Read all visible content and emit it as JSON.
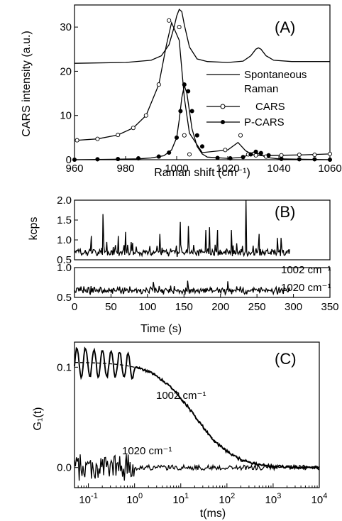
{
  "chart_data": [
    {
      "type": "line",
      "panel_label": "(A)",
      "xlabel": "Raman shift (cm⁻¹)",
      "ylabel": "CARS intensity (a.u.)",
      "xlim": [
        960,
        1060
      ],
      "ylim": [
        0,
        35
      ],
      "xticks": [
        960,
        980,
        1000,
        1020,
        1040,
        1060
      ],
      "yticks": [
        0,
        10,
        20,
        30
      ],
      "legend_position": "right",
      "legend": [
        {
          "text": "Spontaneous",
          "marker": "none"
        },
        {
          "text": "Raman",
          "marker": "none"
        },
        {
          "text": "CARS",
          "marker": "open-circle"
        },
        {
          "text": "P-CARS",
          "marker": "filled-circle"
        }
      ],
      "series": [
        {
          "name": "Spontaneous Raman",
          "x": [
            960,
            980,
            990,
            994,
            997,
            999,
            1000,
            1001,
            1002,
            1003,
            1005,
            1008,
            1012,
            1020,
            1026,
            1029,
            1031,
            1032,
            1033,
            1035,
            1038,
            1045,
            1060
          ],
          "y": [
            21.8,
            22,
            22.5,
            23.5,
            26,
            30,
            32.5,
            34,
            33.5,
            30.5,
            25.5,
            22.8,
            22.2,
            22,
            22.3,
            23.5,
            25,
            25.3,
            25,
            23.5,
            22.5,
            22.2,
            22.2
          ]
        },
        {
          "name": "CARS",
          "x": [
            961,
            969,
            977,
            983,
            988,
            993,
            996,
            998,
            1001,
            1003,
            1005,
            1010,
            1020,
            1024,
            1027,
            1030,
            1033,
            1040,
            1050,
            1060
          ],
          "y": [
            4.4,
            4.7,
            5.6,
            7.2,
            10,
            17,
            26,
            31,
            27,
            14,
            6,
            1.6,
            2.2,
            3.9,
            2,
            1.1,
            0.9,
            1,
            1.1,
            1.3
          ],
          "markers_x": [
            961,
            969,
            977,
            983,
            988,
            993,
            997,
            1001,
            1003,
            1005,
            1019,
            1025,
            1028,
            1031,
            1035,
            1041,
            1048,
            1054,
            1060
          ],
          "markers_y": [
            4.4,
            4.7,
            5.6,
            7.2,
            10,
            17,
            31.5,
            30,
            5.5,
            1.2,
            2.2,
            5.5,
            1.2,
            1,
            0.7,
            1,
            1.1,
            1.1,
            1.3
          ]
        },
        {
          "name": "P-CARS",
          "x": [
            960,
            975,
            985,
            990,
            995,
            998,
            1000,
            1001,
            1002,
            1003,
            1004,
            1005,
            1006,
            1008,
            1010,
            1012,
            1020,
            1025,
            1028,
            1030,
            1031,
            1033,
            1035,
            1040,
            1050,
            1060
          ],
          "y": [
            0,
            0.1,
            0.2,
            0.4,
            0.9,
            2.2,
            5,
            9,
            14,
            16.8,
            15,
            11,
            7,
            3,
            1.3,
            0.6,
            0.3,
            0.5,
            1,
            1.7,
            1.6,
            1.1,
            0.5,
            0.2,
            0.1,
            0
          ],
          "markers_x": [
            960,
            969,
            977,
            985,
            993,
            997,
            1000,
            1001.5,
            1003,
            1004.5,
            1006,
            1008,
            1010,
            1016,
            1021,
            1026,
            1029,
            1031,
            1033,
            1036,
            1041,
            1048,
            1054,
            1060
          ],
          "markers_y": [
            0,
            0.1,
            0.15,
            0.3,
            0.7,
            1.6,
            5,
            11,
            17,
            15.5,
            11,
            5.5,
            3,
            0.4,
            0.3,
            0.6,
            1.2,
            1.8,
            1.5,
            1,
            0.2,
            0.1,
            0.1,
            0
          ]
        }
      ]
    },
    {
      "type": "line",
      "panel_label": "(B)",
      "xlabel": "Time (s)",
      "ylabel": "kcps",
      "xlim": [
        0,
        350
      ],
      "xticks": [
        0,
        50,
        100,
        150,
        200,
        250,
        300,
        350
      ],
      "subplots": [
        {
          "name": "1002 cm⁻¹",
          "ylim": [
            0.5,
            2.0
          ],
          "yticks": [
            0.5,
            1.0,
            1.5,
            2.0
          ],
          "annotation": "1002 cm⁻¹",
          "series": {
            "t_start": 0,
            "t_end": 295,
            "baseline": 0.68,
            "noise": 0.07,
            "spikes_t": [
              39,
              235,
              145,
              70,
              156,
              185,
              180,
              196,
              117,
              215,
              60,
              253,
              283,
              23,
              278
            ],
            "spikes_y": [
              1.65,
              2.0,
              1.45,
              1.2,
              1.35,
              1.32,
              1.25,
              1.25,
              1.15,
              1.25,
              1.1,
              1.15,
              1.05,
              1.1,
              1.05
            ]
          }
        },
        {
          "name": "1020 cm⁻¹",
          "ylim": [
            0.5,
            1.0
          ],
          "yticks": [
            0.5,
            1.0
          ],
          "annotation": "1020 cm⁻¹",
          "series": {
            "t_start": 0,
            "t_end": 295,
            "baseline": 0.62,
            "noise": 0.05,
            "spikes_t": [
              155,
              210,
              108
            ],
            "spikes_y": [
              0.78,
              0.77,
              0.76
            ]
          }
        }
      ]
    },
    {
      "type": "line",
      "panel_label": "(C)",
      "xlabel": "t(ms)",
      "ylabel": "G₁(t)",
      "xscale": "log",
      "xlim": [
        0.05,
        10000
      ],
      "ylim": [
        -0.02,
        0.125
      ],
      "xticks": [
        0.1,
        1,
        10,
        100,
        1000,
        10000
      ],
      "xticklabels": [
        {
          "base": "10",
          "exp": "-1"
        },
        {
          "base": "10",
          "exp": "0"
        },
        {
          "base": "10",
          "exp": "1"
        },
        {
          "base": "10",
          "exp": "2"
        },
        {
          "base": "10",
          "exp": "3"
        },
        {
          "base": "10",
          "exp": "4"
        }
      ],
      "yticks": [
        0.0,
        0.1
      ],
      "yticklabels": [
        "0.0",
        "0.1"
      ],
      "series": [
        {
          "name": "1002 cm⁻¹",
          "annotation": "1002 cm⁻¹",
          "amplitude": 0.105,
          "tau_ms": 20,
          "with_fit": true
        },
        {
          "name": "1020 cm⁻¹",
          "annotation": "1020 cm⁻¹",
          "amplitude": 0.0,
          "noise": 0.01
        }
      ]
    }
  ]
}
